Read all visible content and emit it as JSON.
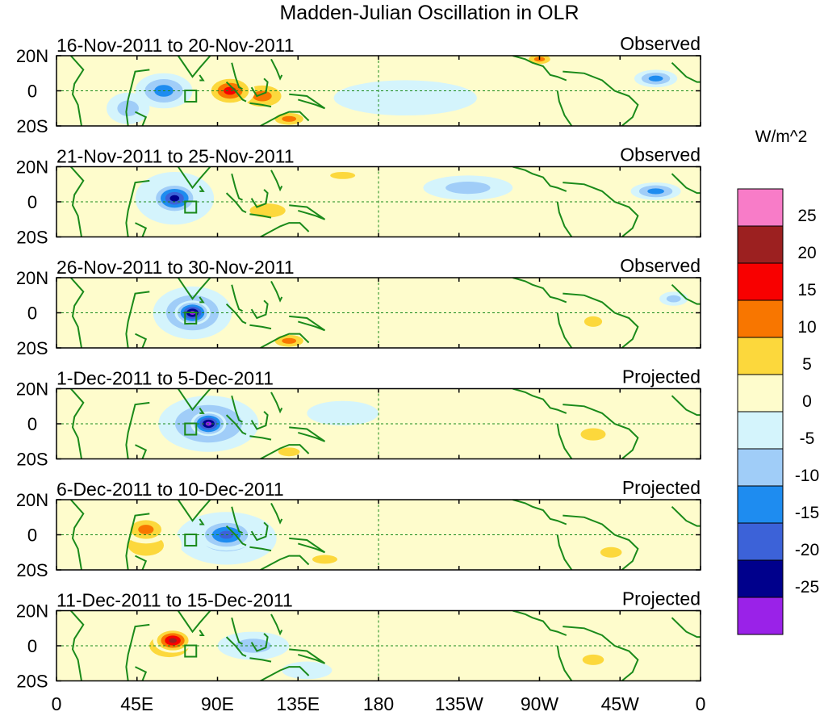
{
  "chart_data": {
    "type": "heatmap",
    "title": "Madden-Julian Oscillation in OLR",
    "units_label": "W/m^2",
    "x_ticks": [
      "0",
      "45E",
      "90E",
      "135E",
      "180",
      "135W",
      "90W",
      "45W",
      "0"
    ],
    "x_range_deg_east": [
      0,
      360
    ],
    "y_ticks": [
      "20N",
      "0",
      "20S"
    ],
    "y_range_deg": [
      -20,
      20
    ],
    "colorbar": {
      "levels": [
        -30,
        -25,
        -20,
        -15,
        -10,
        -5,
        0,
        5,
        10,
        15,
        20,
        25,
        30
      ],
      "tick_labels": [
        "-25",
        "-20",
        "-15",
        "-10",
        "-5",
        "0",
        "5",
        "10",
        "15",
        "20",
        "25"
      ],
      "colors": [
        "#9a22e8",
        "#00008c",
        "#3c62d8",
        "#1e8cf0",
        "#a0cdf8",
        "#d4f4fc",
        "#fefccc",
        "#fcd83c",
        "#f87600",
        "#f80000",
        "#9c2020",
        "#f87cc8"
      ]
    },
    "panels": [
      {
        "date_range": "16-Nov-2011 to 20-Nov-2011",
        "kind": "Observed",
        "box": {
          "lon": 75,
          "lat": -3
        },
        "anomalies": [
          {
            "lon": 60,
            "lat": 0,
            "value": -13,
            "rlon": 16,
            "rlat": 10
          },
          {
            "lon": 40,
            "lat": -10,
            "value": -6,
            "rlon": 12,
            "rlat": 9
          },
          {
            "lon": 97,
            "lat": 0,
            "value": 20,
            "rlon": 14,
            "rlat": 9
          },
          {
            "lon": 115,
            "lat": -3,
            "value": 13,
            "rlon": 16,
            "rlat": 9
          },
          {
            "lon": 130,
            "lat": -16,
            "value": 11,
            "rlon": 12,
            "rlat": 5
          },
          {
            "lon": 270,
            "lat": 18,
            "value": 11,
            "rlon": 9,
            "rlat": 4
          },
          {
            "lon": 335,
            "lat": 7,
            "value": -14,
            "rlon": 12,
            "rlat": 5
          },
          {
            "lon": 195,
            "lat": -4,
            "value": -4,
            "rlon": 40,
            "rlat": 10
          },
          {
            "lon": 150,
            "lat": 17,
            "value": 4,
            "rlon": 18,
            "rlat": 4
          }
        ]
      },
      {
        "date_range": "21-Nov-2011 to 25-Nov-2011",
        "kind": "Observed",
        "box": {
          "lon": 75,
          "lat": -3
        },
        "anomalies": [
          {
            "lon": 66,
            "lat": 2,
            "value": -24,
            "rlon": 13,
            "rlat": 9
          },
          {
            "lon": 66,
            "lat": 2,
            "value": -10,
            "rlon": 22,
            "rlat": 15
          },
          {
            "lon": 118,
            "lat": -5,
            "value": 10,
            "rlon": 20,
            "rlat": 8
          },
          {
            "lon": 25,
            "lat": 0,
            "value": 4,
            "rlon": 18,
            "rlat": 8
          },
          {
            "lon": 160,
            "lat": 15,
            "value": 7,
            "rlon": 14,
            "rlat": 4
          },
          {
            "lon": 335,
            "lat": 6,
            "value": -12,
            "rlon": 14,
            "rlat": 5
          },
          {
            "lon": 230,
            "lat": 8,
            "value": -6,
            "rlon": 25,
            "rlat": 7
          }
        ]
      },
      {
        "date_range": "26-Nov-2011 to 30-Nov-2011",
        "kind": "Observed",
        "box": {
          "lon": 75,
          "lat": -3
        },
        "anomalies": [
          {
            "lon": 76,
            "lat": 0,
            "value": -27,
            "rlon": 10,
            "rlat": 7
          },
          {
            "lon": 76,
            "lat": 0,
            "value": -12,
            "rlon": 22,
            "rlat": 15
          },
          {
            "lon": 130,
            "lat": -16,
            "value": 12,
            "rlon": 12,
            "rlat": 5
          },
          {
            "lon": 30,
            "lat": 0,
            "value": 4,
            "rlon": 20,
            "rlat": 10
          },
          {
            "lon": 300,
            "lat": -5,
            "value": 6,
            "rlon": 10,
            "rlat": 6
          },
          {
            "lon": 345,
            "lat": 8,
            "value": -9,
            "rlon": 8,
            "rlat": 4
          },
          {
            "lon": 175,
            "lat": 8,
            "value": 3,
            "rlon": 40,
            "rlat": 10
          }
        ]
      },
      {
        "date_range": "1-Dec-2011 to 5-Dec-2011",
        "kind": "Projected",
        "box": {
          "lon": 75,
          "lat": -3
        },
        "anomalies": [
          {
            "lon": 85,
            "lat": 0,
            "value": -26,
            "rlon": 10,
            "rlat": 7
          },
          {
            "lon": 85,
            "lat": 0,
            "value": -12,
            "rlon": 28,
            "rlat": 16
          },
          {
            "lon": 25,
            "lat": 2,
            "value": 5,
            "rlon": 22,
            "rlat": 10
          },
          {
            "lon": 130,
            "lat": -16,
            "value": 9,
            "rlon": 12,
            "rlat": 5
          },
          {
            "lon": 300,
            "lat": -6,
            "value": 6,
            "rlon": 14,
            "rlat": 7
          },
          {
            "lon": 160,
            "lat": 6,
            "value": -5,
            "rlon": 20,
            "rlat": 7
          }
        ]
      },
      {
        "date_range": "6-Dec-2011 to 10-Dec-2011",
        "kind": "Projected",
        "box": {
          "lon": 75,
          "lat": -3
        },
        "anomalies": [
          {
            "lon": 50,
            "lat": 3,
            "value": 14,
            "rlon": 13,
            "rlat": 8
          },
          {
            "lon": 50,
            "lat": -6,
            "value": 8,
            "rlon": 20,
            "rlat": 12
          },
          {
            "lon": 95,
            "lat": 0,
            "value": -16,
            "rlon": 16,
            "rlat": 9
          },
          {
            "lon": 95,
            "lat": -2,
            "value": -7,
            "rlon": 28,
            "rlat": 15
          },
          {
            "lon": 150,
            "lat": -14,
            "value": 7,
            "rlon": 14,
            "rlat": 5
          },
          {
            "lon": 310,
            "lat": -10,
            "value": 6,
            "rlon": 12,
            "rlat": 6
          }
        ]
      },
      {
        "date_range": "11-Dec-2011 to 15-Dec-2011",
        "kind": "Projected",
        "box": {
          "lon": 75,
          "lat": -3
        },
        "anomalies": [
          {
            "lon": 65,
            "lat": 3,
            "value": 22,
            "rlon": 11,
            "rlat": 7
          },
          {
            "lon": 63,
            "lat": 0,
            "value": 10,
            "rlon": 22,
            "rlat": 13
          },
          {
            "lon": 110,
            "lat": 0,
            "value": -6,
            "rlon": 20,
            "rlat": 8
          },
          {
            "lon": 140,
            "lat": -14,
            "value": -5,
            "rlon": 14,
            "rlat": 5
          },
          {
            "lon": 300,
            "lat": -8,
            "value": 6,
            "rlon": 12,
            "rlat": 6
          }
        ]
      }
    ]
  }
}
